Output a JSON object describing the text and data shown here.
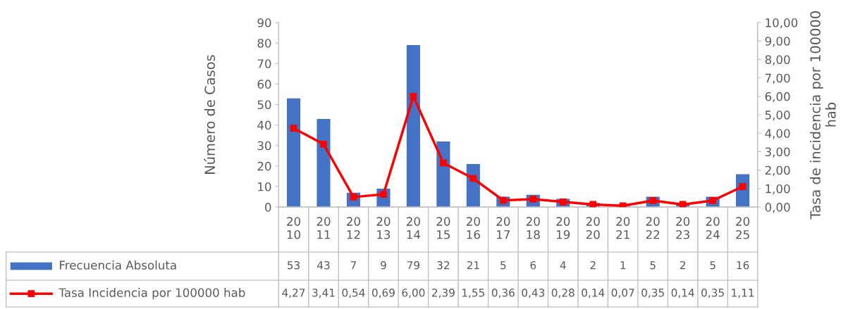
{
  "chart_data": {
    "type": "bar",
    "categories": [
      "20\n10",
      "20\n11",
      "20\n12",
      "20\n13",
      "20\n14",
      "20\n15",
      "20\n16",
      "20\n17",
      "20\n18",
      "20\n19",
      "20\n20",
      "20\n21",
      "20\n22",
      "20\n23",
      "20\n24",
      "20\n25"
    ],
    "series": [
      {
        "name": "Frecuencia Absoluta",
        "color": "#4472c4",
        "values": [
          53,
          43,
          7,
          9,
          79,
          32,
          21,
          5,
          6,
          4,
          2,
          1,
          5,
          2,
          5,
          16
        ],
        "value_labels": [
          "53",
          "43",
          "7",
          "9",
          "79",
          "32",
          "21",
          "5",
          "6",
          "4",
          "2",
          "1",
          "5",
          "2",
          "5",
          "16"
        ]
      },
      {
        "name": "Tasa Incidencia por 100000 hab",
        "type": "line",
        "axis": "y2",
        "color": "#ff0000",
        "marker": "square",
        "values": [
          4.27,
          3.41,
          0.54,
          0.69,
          6.0,
          2.39,
          1.55,
          0.36,
          0.43,
          0.28,
          0.14,
          0.07,
          0.35,
          0.14,
          0.35,
          1.11
        ],
        "value_labels": [
          "4,27",
          "3,41",
          "0,54",
          "0,69",
          "6,00",
          "2,39",
          "1,55",
          "0,36",
          "0,43",
          "0,28",
          "0,14",
          "0,07",
          "0,35",
          "0,14",
          "0,35",
          "1,11"
        ]
      }
    ],
    "ylabel": "Número de Casos",
    "y2label": "Tasa de incidencia por 100000\nhab",
    "ylim": [
      0,
      90
    ],
    "yticks": [
      0,
      10,
      20,
      30,
      40,
      50,
      60,
      70,
      80,
      90
    ],
    "y2lim": [
      0,
      10
    ],
    "y2ticks": [
      {
        "value": 0,
        "label": "0,00"
      },
      {
        "value": 1,
        "label": "1,00"
      },
      {
        "value": 2,
        "label": "2,00"
      },
      {
        "value": 3,
        "label": "3,00"
      },
      {
        "value": 4,
        "label": "4,00"
      },
      {
        "value": 5,
        "label": "5,00"
      },
      {
        "value": 6,
        "label": "6,00"
      },
      {
        "value": 7,
        "label": "7,00"
      },
      {
        "value": 8,
        "label": "8,00"
      },
      {
        "value": 9,
        "label": "9,00"
      },
      {
        "value": 10,
        "label": "10,00"
      }
    ],
    "grid": false,
    "legend": "bottom"
  }
}
